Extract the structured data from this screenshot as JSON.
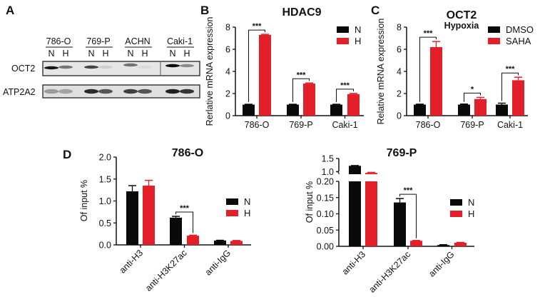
{
  "panel_labels": [
    "A",
    "B",
    "C",
    "D"
  ],
  "colors": {
    "black": "#0a0a0a",
    "red": "#e3202a"
  },
  "blot": {
    "cell_lines": [
      "786-O",
      "769-P",
      "ACHN",
      "Caki-1"
    ],
    "lanes": [
      "N",
      "H"
    ],
    "rows": [
      "OCT2",
      "ATP2A2"
    ],
    "oct2_intensity": [
      0.9,
      0.5,
      0.7,
      0.1,
      0.5,
      0.05,
      0.95,
      0.4
    ],
    "atp2a2_intensity": [
      0.35,
      0.3,
      0.9,
      0.7,
      0.8,
      0.7,
      0.95,
      0.85
    ]
  },
  "chart_data": [
    {
      "id": "B",
      "type": "bar",
      "title": "HDAC9",
      "subtitle": "",
      "ylabel": "Rerlative mRNA expression",
      "xlabel": "",
      "categories": [
        "786-O",
        "769-P",
        "Caki-1"
      ],
      "ylim": [
        0,
        8
      ],
      "yticks": [
        "0",
        "2",
        "4",
        "6",
        "8"
      ],
      "ytick_values": [
        0,
        2,
        4,
        6,
        8
      ],
      "series": [
        {
          "name": "N",
          "color": "#0a0a0a",
          "values": [
            1.0,
            1.0,
            1.0
          ],
          "errors": [
            0.03,
            0.03,
            0.03
          ]
        },
        {
          "name": "H",
          "color": "#e3202a",
          "values": [
            7.3,
            2.9,
            1.95
          ],
          "errors": [
            0.05,
            0.05,
            0.06
          ]
        }
      ],
      "significance": [
        "***",
        "***",
        "***"
      ],
      "legend": "top-right"
    },
    {
      "id": "C",
      "type": "bar",
      "title": "OCT2",
      "subtitle": "Hypoxia",
      "ylabel": "Relative mRNA expression",
      "xlabel": "",
      "categories": [
        "786-O",
        "769-P",
        "Caki-1"
      ],
      "ylim": [
        0,
        8
      ],
      "yticks": [
        "0",
        "2",
        "4",
        "6",
        "8"
      ],
      "ytick_values": [
        0,
        2,
        4,
        6,
        8
      ],
      "series": [
        {
          "name": "DMSO",
          "color": "#0a0a0a",
          "values": [
            1.0,
            1.0,
            1.0
          ],
          "errors": [
            0.04,
            0.05,
            0.13
          ]
        },
        {
          "name": "SAHA",
          "color": "#e3202a",
          "values": [
            6.2,
            1.5,
            3.2
          ],
          "errors": [
            0.5,
            0.15,
            0.27
          ]
        }
      ],
      "significance": [
        "***",
        "*",
        "***"
      ],
      "legend": "top-right"
    },
    {
      "id": "D1",
      "type": "bar",
      "title": "786-O",
      "subtitle": "",
      "ylabel": "Of input %",
      "xlabel": "",
      "categories": [
        "anti-H3",
        "anti-H3K27ac",
        "anti-IgG"
      ],
      "ylim": [
        0,
        2.0
      ],
      "yticks": [
        "0.0",
        "0.5",
        "1.0",
        "1.5",
        "2.0"
      ],
      "ytick_values": [
        0,
        0.5,
        1.0,
        1.5,
        2.0
      ],
      "series": [
        {
          "name": "N",
          "color": "#0a0a0a",
          "values": [
            1.22,
            0.62,
            0.1
          ],
          "errors": [
            0.13,
            0.03,
            0.005
          ]
        },
        {
          "name": "H",
          "color": "#e3202a",
          "values": [
            1.35,
            0.21,
            0.09
          ],
          "errors": [
            0.12,
            0.01,
            0.01
          ]
        }
      ],
      "significance": [
        "",
        "***",
        ""
      ],
      "legend": "right"
    },
    {
      "id": "D2",
      "type": "bar",
      "title": "769-P",
      "subtitle": "",
      "ylabel": "Of input %",
      "xlabel": "",
      "categories": [
        "anti-H3",
        "anti-H3K27ac",
        "anti-IgG"
      ],
      "ylim": [
        0,
        1.5
      ],
      "axis_break": [
        0.2,
        0.9
      ],
      "yticks": [
        "0.00",
        "0.05",
        "0.10",
        "0.15",
        "0.20",
        "1.0",
        "1.5"
      ],
      "ytick_values": [
        0,
        0.05,
        0.1,
        0.15,
        0.2,
        1.0,
        1.5
      ],
      "series": [
        {
          "name": "N",
          "color": "#0a0a0a",
          "values": [
            1.22,
            0.135,
            0.004
          ],
          "errors": [
            0.01,
            0.012,
            0.001
          ]
        },
        {
          "name": "H",
          "color": "#e3202a",
          "values": [
            0.95,
            0.017,
            0.011
          ],
          "errors": [
            0.02,
            0.001,
            0.001
          ]
        }
      ],
      "significance": [
        "",
        "***",
        ""
      ],
      "legend": "right"
    }
  ]
}
